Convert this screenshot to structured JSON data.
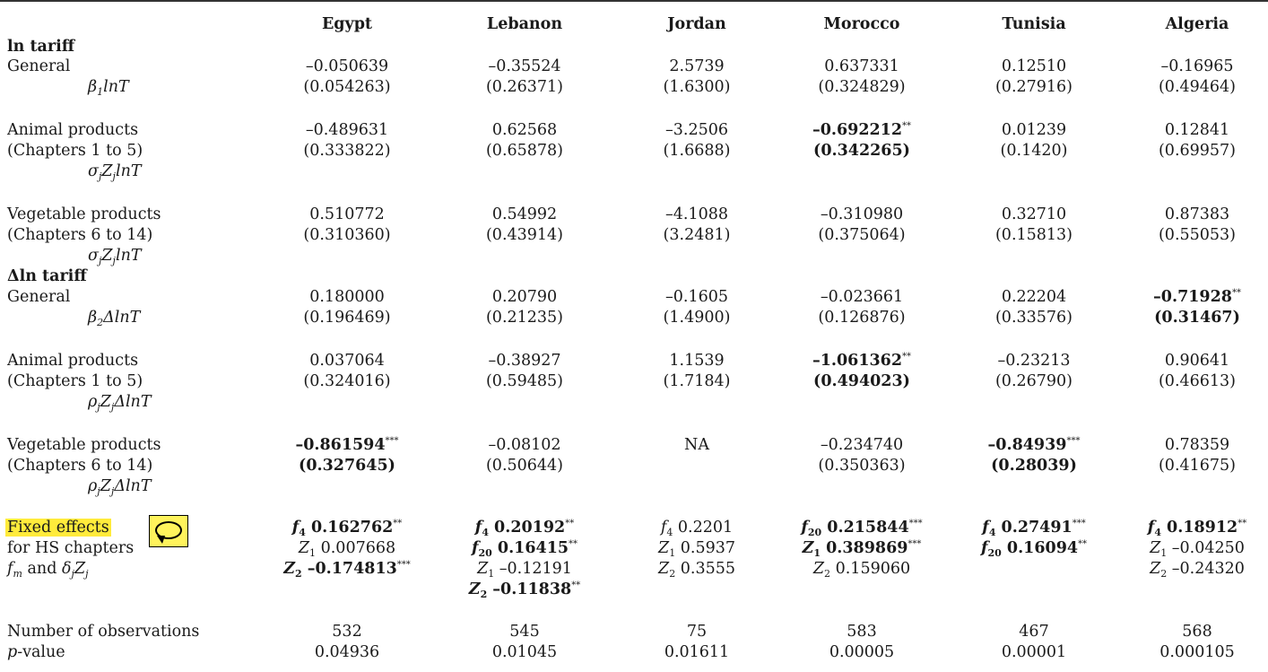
{
  "headers": [
    "Egypt",
    "Lebanon",
    "Jordan",
    "Morocco",
    "Tunisia",
    "Algeria"
  ],
  "sec1": "ln tariff",
  "sec2": "Δln tariff",
  "row_labels": {
    "general": "General",
    "beta1": "β",
    "beta1_sub": "1",
    "beta1_tail": "lnT",
    "animal": "Animal products",
    "ch1to5": "(Chapters 1 to 5)",
    "sigma_z": "σ",
    "sigma_sub": "j",
    "z": "Z",
    "z_sub": "j",
    "lnT": "lnT",
    "vegetable": "Vegetable products",
    "ch6to14": "(Chapters 6 to 14)",
    "beta2": "β",
    "beta2_sub": "2",
    "beta2_tail": "ΔlnT",
    "rho": "ρ",
    "rho_sub": "j",
    "dlnT": "ΔlnT",
    "fixed1": "Fixed effects",
    "fixed2": "for HS chapters",
    "fixed3_f": "f",
    "fixed3_m": "m",
    "fixed3_and": " and ",
    "fixed3_d": "δ",
    "fixed3_j": "j",
    "fixed3_Z": "Z",
    "obs": "Number of observations",
    "pval_p": "p",
    "pval_rest": "-value"
  },
  "lnT_general": [
    [
      "–0.050639",
      "(0.054263)"
    ],
    [
      "–0.35524",
      "(0.26371)"
    ],
    [
      "2.5739",
      "(1.6300)"
    ],
    [
      "0.637331",
      "(0.324829)"
    ],
    [
      "0.12510",
      "(0.27916)"
    ],
    [
      "–0.16965",
      "(0.49464)"
    ]
  ],
  "lnT_animal": [
    [
      "–0.489631",
      "(0.333822)"
    ],
    [
      "0.62568",
      "(0.65878)"
    ],
    [
      "–3.2506",
      "(1.6688)"
    ],
    [
      "–0.692212",
      "(0.342265)"
    ],
    [
      "0.01239",
      "(0.1420)"
    ],
    [
      "0.12841",
      "(0.69957)"
    ]
  ],
  "lnT_veg": [
    [
      "0.510772",
      "(0.310360)"
    ],
    [
      "0.54992",
      "(0.43914)"
    ],
    [
      "–4.1088",
      "(3.2481)"
    ],
    [
      "–0.310980",
      "(0.375064)"
    ],
    [
      "0.32710",
      "(0.15813)"
    ],
    [
      "0.87383",
      "(0.55053)"
    ]
  ],
  "d_general": [
    [
      "0.180000",
      "(0.196469)"
    ],
    [
      "0.20790",
      "(0.21235)"
    ],
    [
      "–0.1605",
      "(1.4900)"
    ],
    [
      "–0.023661",
      "(0.126876)"
    ],
    [
      "0.22204",
      "(0.33576)"
    ],
    [
      "–0.71928",
      "(0.31467)"
    ]
  ],
  "d_animal": [
    [
      "0.037064",
      "(0.324016)"
    ],
    [
      "–0.38927",
      "(0.59485)"
    ],
    [
      "1.1539",
      "(1.7184)"
    ],
    [
      "–1.061362",
      "(0.494023)"
    ],
    [
      "–0.23213",
      "(0.26790)"
    ],
    [
      "0.90641",
      "(0.46613)"
    ]
  ],
  "d_veg": [
    [
      "–0.861594",
      "(0.327645)"
    ],
    [
      "–0.08102",
      "(0.50644)"
    ],
    [
      "NA",
      ""
    ],
    [
      "–0.234740",
      "(0.350363)"
    ],
    [
      "–0.84939",
      "(0.28039)"
    ],
    [
      "0.78359",
      "(0.41675)"
    ]
  ],
  "stars": {
    "two": "**",
    "three": "***"
  },
  "fixed": {
    "f4": "f",
    "s4": "4",
    "s20": "20",
    "Z": "Z",
    "s1": "1",
    "s2": "2",
    "egypt": [
      "0.162762",
      "0.007668",
      "–0.174813"
    ],
    "lebanon": [
      "0.20192",
      "0.16415",
      "–0.12191",
      "–0.11838"
    ],
    "jordan": [
      "0.2201",
      "0.5937",
      "0.3555"
    ],
    "morocco": [
      "0.215844",
      "0.389869",
      "0.159060"
    ],
    "tunisia": [
      "0.27491",
      "0.16094"
    ],
    "algeria": [
      "0.18912",
      "–0.04250",
      "–0.24320"
    ]
  },
  "obs": [
    "532",
    "545",
    "75",
    "583",
    "467",
    "568"
  ],
  "pval": [
    "0.04936",
    "0.01045",
    "0.01611",
    "0.00005",
    "0.00001",
    "0.000105"
  ],
  "colors": {
    "highlight": "#ffeb3b",
    "bubble": "#fff35c"
  },
  "icons": {
    "comment": "speech-bubble-icon"
  }
}
